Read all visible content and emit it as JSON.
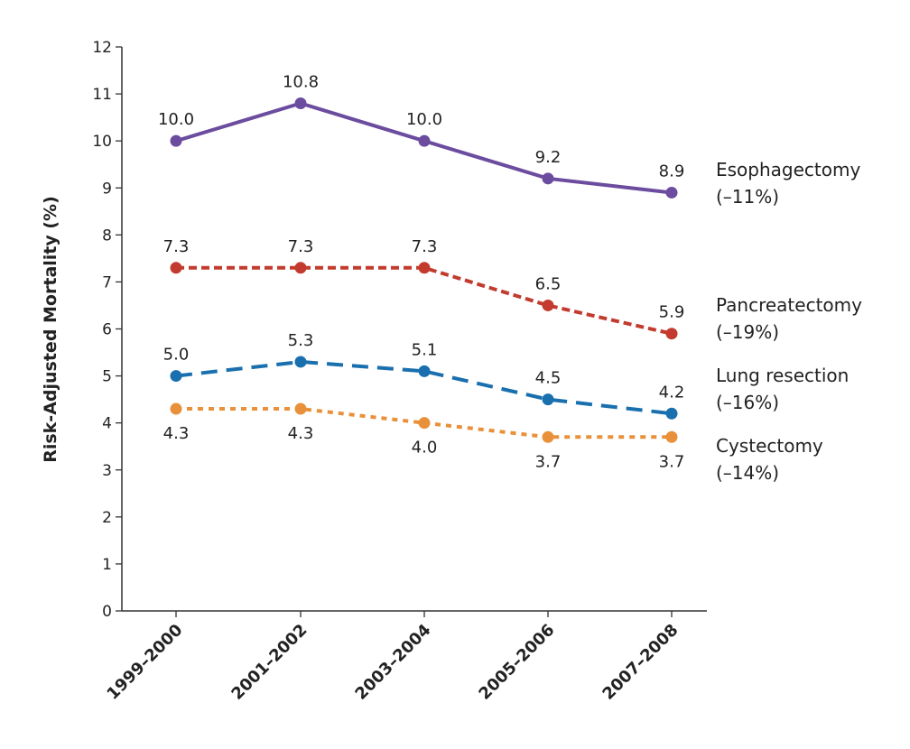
{
  "chart_data": {
    "type": "line",
    "title": "",
    "xlabel": "",
    "ylabel": "Risk-Adjusted Mortality (%)",
    "ylim": [
      0,
      12
    ],
    "yticks": [
      "0",
      "1",
      "2",
      "3",
      "4",
      "5",
      "6",
      "7",
      "8",
      "9",
      "10",
      "11",
      "12"
    ],
    "categories": [
      "1999–2000",
      "2001–2002",
      "2003–2004",
      "2005–2006",
      "2007–2008"
    ],
    "grid": false,
    "legend_placement": "right",
    "series": [
      {
        "name": "Esophagectomy",
        "change": "(–11%)",
        "color": "#6b4c9e",
        "dash": "solid",
        "label_pos": "above",
        "values": [
          10.0,
          10.8,
          10.0,
          9.2,
          8.9
        ],
        "labels": [
          "10.0",
          "10.8",
          "10.0",
          "9.2",
          "8.9"
        ]
      },
      {
        "name": "Pancreatectomy",
        "change": "(–19%)",
        "color": "#c23b2e",
        "dash": "dashed",
        "label_pos": "above",
        "values": [
          7.3,
          7.3,
          7.3,
          6.5,
          5.9
        ],
        "labels": [
          "7.3",
          "7.3",
          "7.3",
          "6.5",
          "5.9"
        ]
      },
      {
        "name": "Lung resection",
        "change": "(–16%)",
        "color": "#1a6fae",
        "dash": "longdash",
        "label_pos": "above",
        "values": [
          5.0,
          5.3,
          5.1,
          4.5,
          4.2
        ],
        "labels": [
          "5.0",
          "5.3",
          "5.1",
          "4.5",
          "4.2"
        ]
      },
      {
        "name": "Cystectomy",
        "change": "(–14%)",
        "color": "#e8913a",
        "dash": "dotted",
        "label_pos": "below",
        "values": [
          4.3,
          4.3,
          4.0,
          3.7,
          3.7
        ],
        "labels": [
          "4.3",
          "4.3",
          "4.0",
          "3.7",
          "3.7"
        ]
      }
    ]
  }
}
